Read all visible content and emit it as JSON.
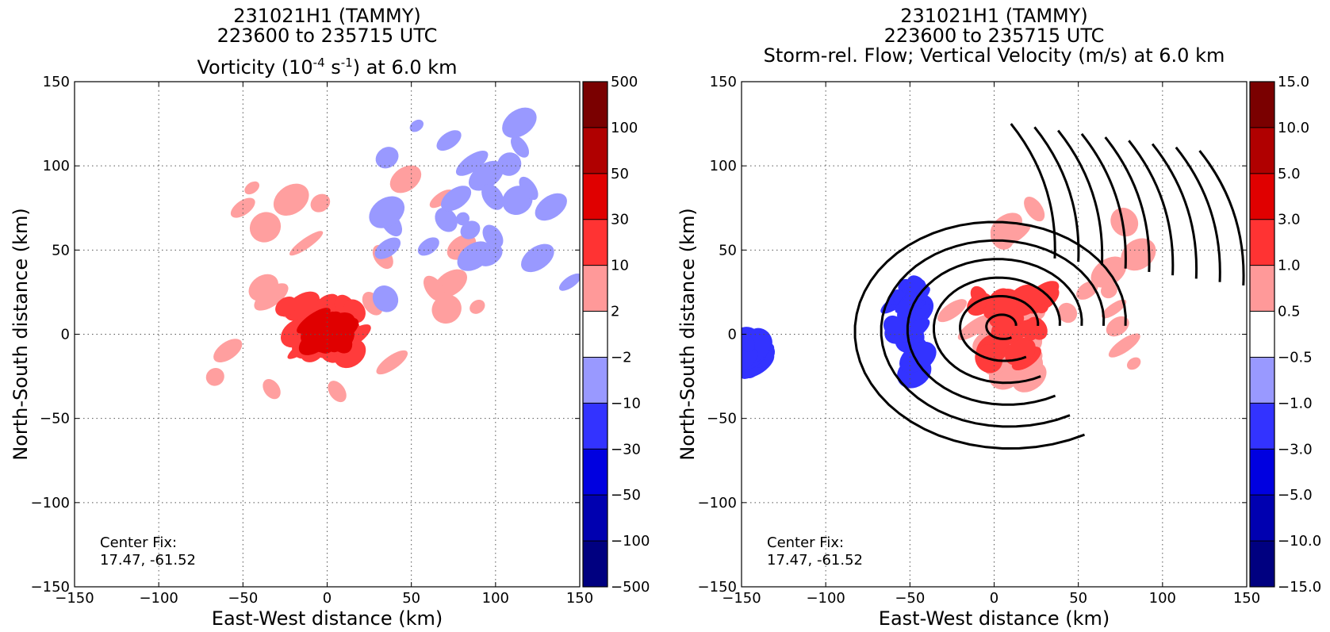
{
  "chart_data": [
    {
      "type": "heatmap",
      "title_lines": [
        "231021H1 (TAMMY)",
        "223600 to 235715 UTC"
      ],
      "title_line3": {
        "pre": "Vorticity (10",
        "sup1": "-4",
        "mid": " s",
        "sup2": "-1",
        "post": ") at 6.0 km"
      },
      "xlabel": "East-West distance (km)",
      "ylabel": "North-South distance (km)",
      "xlim": [
        -150,
        150
      ],
      "ylim": [
        -150,
        150
      ],
      "xticks": [
        -150,
        -100,
        -50,
        0,
        50,
        100,
        150
      ],
      "yticks": [
        -150,
        -100,
        -50,
        0,
        50,
        100,
        150
      ],
      "grid": true,
      "annotation": [
        "Center Fix:",
        "17.47, -61.52"
      ],
      "colorbar": {
        "labels": [
          "500",
          "100",
          "50",
          "30",
          "10",
          "2",
          "−2",
          "−10",
          "−30",
          "−50",
          "−100",
          "−500"
        ],
        "colors": [
          "#7a0000",
          "#b00000",
          "#e00000",
          "#ff3333",
          "#ff9999",
          "#ffffff",
          "#9999ff",
          "#3333ff",
          "#0000e0",
          "#0000b0",
          "#000080"
        ]
      },
      "field_regions": [
        {
          "level": "2 to 10",
          "color": "#ff9f9f",
          "x": [
            -80,
            90
          ],
          "y": [
            -35,
            95
          ]
        },
        {
          "level": "10 to 30",
          "color": "#ff3b3b",
          "x": [
            -25,
            25
          ],
          "y": [
            -15,
            20
          ]
        },
        {
          "level": "30 to 50",
          "color": "#e00000",
          "x": [
            -10,
            10
          ],
          "y": [
            -5,
            10
          ]
        },
        {
          "level": "-10 to -2",
          "color": "#9999ff",
          "x": [
            30,
            150
          ],
          "y": [
            20,
            130
          ]
        }
      ]
    },
    {
      "type": "heatmap",
      "title_lines": [
        "231021H1 (TAMMY)",
        "223600 to 235715 UTC",
        "Storm-rel. Flow; Vertical Velocity (m/s) at 6.0 km"
      ],
      "xlabel": "East-West distance (km)",
      "ylabel": "North-South distance (km)",
      "xlim": [
        -150,
        150
      ],
      "ylim": [
        -150,
        150
      ],
      "xticks": [
        -150,
        -100,
        -50,
        0,
        50,
        100,
        150
      ],
      "yticks": [
        -150,
        -100,
        -50,
        0,
        50,
        100,
        150
      ],
      "grid": true,
      "annotation": [
        "Center Fix:",
        "17.47, -61.52"
      ],
      "colorbar": {
        "labels": [
          "15.0",
          "10.0",
          "5.0",
          "3.0",
          "1.0",
          "0.5",
          "−0.5",
          "−1.0",
          "−3.0",
          "−5.0",
          "−10.0",
          "−15.0"
        ],
        "colors": [
          "#7a0000",
          "#b00000",
          "#e00000",
          "#ff3333",
          "#ff9999",
          "#ffffff",
          "#9999ff",
          "#3333ff",
          "#0000e0",
          "#0000b0",
          "#000080"
        ]
      },
      "field_regions": [
        {
          "level": "0.5 to 1.0",
          "color": "#ff9f9f",
          "x": [
            -30,
            90
          ],
          "y": [
            -30,
            80
          ]
        },
        {
          "level": "1.0 to 3.0",
          "color": "#ff3b3b",
          "x": [
            -10,
            30
          ],
          "y": [
            -15,
            25
          ]
        },
        {
          "level": "-3.0 to -1.0",
          "color": "#3333ff",
          "x": [
            -60,
            -45
          ],
          "y": [
            -25,
            30
          ]
        },
        {
          "level": "-3.0 to -1.0",
          "color": "#3333ff",
          "x": [
            -150,
            -138
          ],
          "y": [
            -20,
            -3
          ]
        }
      ],
      "streamline_center": [
        5,
        5
      ]
    }
  ]
}
